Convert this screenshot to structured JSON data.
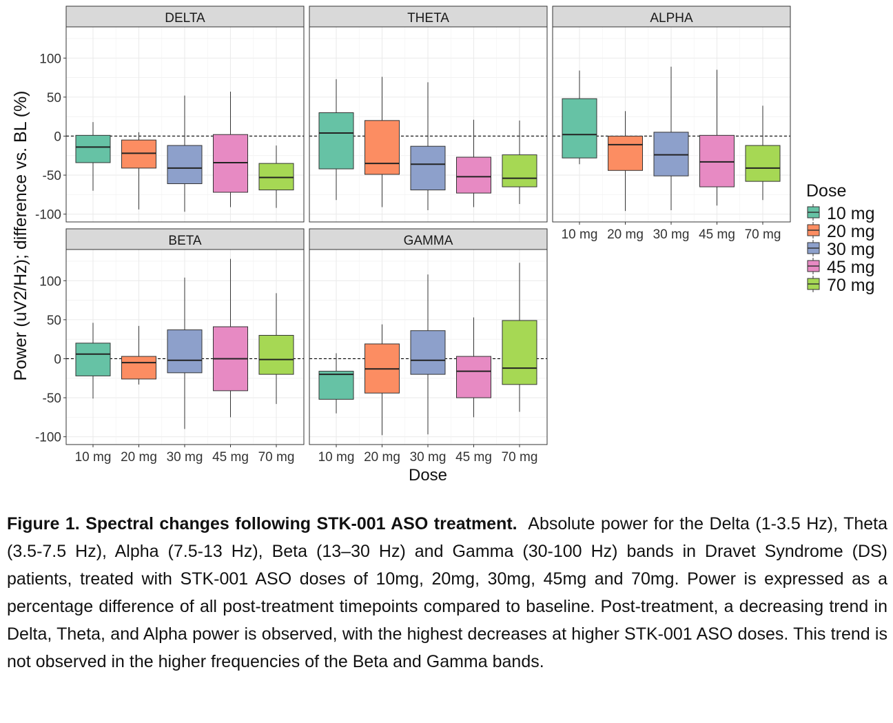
{
  "chart_data": {
    "type": "boxplot",
    "facet_wrap": true,
    "ylabel": "Power (uV2/Hz); difference vs. BL (%)",
    "xlabel": "Dose",
    "y_ticks": [
      "100",
      "50",
      "0",
      "-50",
      "-100"
    ],
    "reference_line_y": 0,
    "grid": true,
    "legend": {
      "title": "Dose",
      "position": "right",
      "items": [
        {
          "label": "10 mg",
          "color": "#66c2a5"
        },
        {
          "label": "20 mg",
          "color": "#fc8d62"
        },
        {
          "label": "30 mg",
          "color": "#8da0cb"
        },
        {
          "label": "45 mg",
          "color": "#e78ac3"
        },
        {
          "label": "70 mg",
          "color": "#a6d854"
        }
      ]
    },
    "categories": [
      "10 mg",
      "20 mg",
      "30 mg",
      "45 mg",
      "70 mg"
    ],
    "panels": [
      {
        "name": "DELTA",
        "ylim": [
          -110,
          140
        ],
        "boxes": [
          {
            "dose": "10 mg",
            "min": -70,
            "q1": -34,
            "median": -14,
            "q3": 1,
            "max": 18
          },
          {
            "dose": "20 mg",
            "min": -94,
            "q1": -41,
            "median": -22,
            "q3": -5,
            "max": 5
          },
          {
            "dose": "30 mg",
            "min": -97,
            "q1": -61,
            "median": -41,
            "q3": -12,
            "max": 52
          },
          {
            "dose": "45 mg",
            "min": -91,
            "q1": -72,
            "median": -34,
            "q3": 2,
            "max": 57
          },
          {
            "dose": "70 mg",
            "min": -92,
            "q1": -69,
            "median": -53,
            "q3": -35,
            "max": -12
          }
        ]
      },
      {
        "name": "THETA",
        "ylim": [
          -110,
          140
        ],
        "boxes": [
          {
            "dose": "10 mg",
            "min": -82,
            "q1": -42,
            "median": 4,
            "q3": 30,
            "max": 73
          },
          {
            "dose": "20 mg",
            "min": -91,
            "q1": -49,
            "median": -35,
            "q3": 20,
            "max": 76
          },
          {
            "dose": "30 mg",
            "min": -95,
            "q1": -69,
            "median": -36,
            "q3": -13,
            "max": 69
          },
          {
            "dose": "45 mg",
            "min": -91,
            "q1": -73,
            "median": -52,
            "q3": -27,
            "max": 21
          },
          {
            "dose": "70 mg",
            "min": -87,
            "q1": -65,
            "median": -54,
            "q3": -24,
            "max": 20
          }
        ]
      },
      {
        "name": "ALPHA",
        "ylim": [
          -110,
          140
        ],
        "boxes": [
          {
            "dose": "10 mg",
            "min": -36,
            "q1": -28,
            "median": 2,
            "q3": 48,
            "max": 84
          },
          {
            "dose": "20 mg",
            "min": -96,
            "q1": -44,
            "median": -11,
            "q3": 0,
            "max": 32
          },
          {
            "dose": "30 mg",
            "min": -95,
            "q1": -51,
            "median": -24,
            "q3": 5,
            "max": 89
          },
          {
            "dose": "45 mg",
            "min": -89,
            "q1": -65,
            "median": -33,
            "q3": 1,
            "max": 85
          },
          {
            "dose": "70 mg",
            "min": -82,
            "q1": -58,
            "median": -41,
            "q3": -12,
            "max": 39
          }
        ]
      },
      {
        "name": "BETA",
        "ylim": [
          -110,
          140
        ],
        "boxes": [
          {
            "dose": "10 mg",
            "min": -51,
            "q1": -22,
            "median": 6,
            "q3": 20,
            "max": 46
          },
          {
            "dose": "20 mg",
            "min": -33,
            "q1": -26,
            "median": -5,
            "q3": 3,
            "max": 42
          },
          {
            "dose": "30 mg",
            "min": -90,
            "q1": -18,
            "median": -2,
            "q3": 37,
            "max": 104
          },
          {
            "dose": "45 mg",
            "min": -75,
            "q1": -41,
            "median": 0,
            "q3": 41,
            "max": 128
          },
          {
            "dose": "70 mg",
            "min": -58,
            "q1": -20,
            "median": -1,
            "q3": 30,
            "max": 84
          }
        ]
      },
      {
        "name": "GAMMA",
        "ylim": [
          -110,
          140
        ],
        "boxes": [
          {
            "dose": "10 mg",
            "min": -70,
            "q1": -52,
            "median": -20,
            "q3": -16,
            "max": 7
          },
          {
            "dose": "20 mg",
            "min": -98,
            "q1": -44,
            "median": -13,
            "q3": 19,
            "max": 44
          },
          {
            "dose": "30 mg",
            "min": -97,
            "q1": -20,
            "median": -2,
            "q3": 36,
            "max": 108
          },
          {
            "dose": "45 mg",
            "min": -75,
            "q1": -50,
            "median": -16,
            "q3": 3,
            "max": 53
          },
          {
            "dose": "70 mg",
            "min": -68,
            "q1": -33,
            "median": -12,
            "q3": 49,
            "max": 123
          }
        ]
      }
    ]
  },
  "caption": {
    "title": "Figure 1. Spectral changes following STK-001 ASO treatment.",
    "text": "Absolute power for the Delta (1-3.5 Hz), Theta (3.5-7.5 Hz), Alpha (7.5-13 Hz), Beta (13–30 Hz) and Gamma (30-100 Hz) bands in Dravet Syndrome (DS) patients, treated with STK-001 ASO doses of 10mg, 20mg, 30mg, 45mg and 70mg. Power is expressed as a percentage difference of all post-treatment timepoints compared to baseline. Post-treatment, a decreasing trend in Delta, Theta, and Alpha power is observed, with the highest decreases at higher STK-001 ASO doses. This trend is not observed in the higher frequencies of the Beta and Gamma bands."
  }
}
